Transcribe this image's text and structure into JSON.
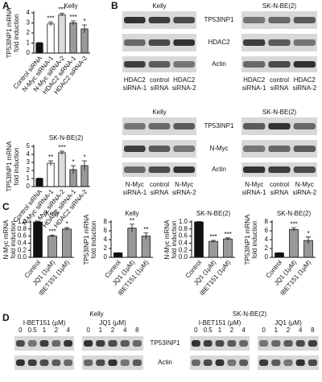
{
  "panel_letters": [
    "A",
    "B",
    "C",
    "D"
  ],
  "chart_data": [
    {
      "type": "bar",
      "title": "Kelly",
      "ylabel": [
        "TP53INP1 mRNA",
        "fold induction"
      ],
      "categories": [
        "Control siRNA",
        "N-Myc siRNA-1",
        "N-Myc siRNA-2",
        "HDAC2 siRNA-1",
        "HDAC2 siRNA-2"
      ],
      "values": [
        1,
        2.9,
        3.8,
        3.0,
        2.4
      ],
      "errors": [
        0.05,
        0.2,
        0.15,
        0.2,
        0.4
      ],
      "colors": [
        "#111111",
        "#ffffff",
        "#dddddd",
        "#999999",
        "#999999"
      ],
      "annotations": [
        null,
        "***",
        "***",
        "***",
        "*"
      ],
      "ylim": [
        0,
        4
      ],
      "yticks": [
        0,
        1,
        2,
        3,
        4
      ]
    },
    {
      "type": "bar",
      "title": "SK-N-BE(2)",
      "ylabel": [
        "TP53INP1 mRNA",
        "fold induction"
      ],
      "categories": [
        "Control siRNA",
        "N-Myc siRNA-1",
        "N-Myc siRNA-2",
        "HDAC2 siRNA-1",
        "HDAC2 siRNA-2"
      ],
      "values": [
        1,
        2.9,
        4.2,
        2.1,
        2.6
      ],
      "errors": [
        0.05,
        0.3,
        0.2,
        0.5,
        0.6
      ],
      "colors": [
        "#111111",
        "#ffffff",
        "#dddddd",
        "#999999",
        "#999999"
      ],
      "annotations": [
        null,
        "**",
        "***",
        "*",
        "*"
      ],
      "ylim": [
        0,
        5
      ],
      "yticks": [
        0,
        1,
        2,
        3,
        4,
        5
      ]
    },
    {
      "type": "bar",
      "title": "Kelly",
      "ylabel": [
        "N-Myc mRNA",
        "fold induction"
      ],
      "categories": [
        "Control",
        "JQ1 (1μM)",
        "IBET151 (1μM)"
      ],
      "values": [
        1,
        0.6,
        0.8
      ],
      "errors": [
        0.01,
        0.03,
        0.04
      ],
      "colors": [
        "#111111",
        "#999999",
        "#999999"
      ],
      "annotations": [
        null,
        "***",
        "*"
      ],
      "ylim": [
        0,
        1.0
      ],
      "yticks": [
        {
          "value": 0,
          "label": "0.0"
        },
        0.2,
        0.4,
        0.6,
        0.8,
        {
          "value": 1,
          "label": "1.0"
        }
      ]
    },
    {
      "type": "bar",
      "title": "Kelly",
      "ylabel": [
        "TP53INP1 mRNA",
        "fold induction"
      ],
      "categories": [
        "Control",
        "JQ1 (1μM)",
        "IBET151 (1μM)"
      ],
      "values": [
        1,
        6.6,
        4.8
      ],
      "errors": [
        0.05,
        0.9,
        0.7
      ],
      "colors": [
        "#111111",
        "#999999",
        "#999999"
      ],
      "annotations": [
        null,
        "**",
        "**"
      ],
      "ylim": [
        0,
        8
      ],
      "yticks": [
        0,
        2,
        4,
        6,
        8
      ]
    },
    {
      "type": "bar",
      "title": "SK-N-BE(2)",
      "ylabel": [
        "N-Myc mRNA",
        "fold induction"
      ],
      "categories": [
        "Control",
        "JQ1 (1μM)",
        "IBET151 (1μM)"
      ],
      "values": [
        1,
        0.45,
        0.52
      ],
      "errors": [
        0.01,
        0.03,
        0.03
      ],
      "colors": [
        "#111111",
        "#999999",
        "#999999"
      ],
      "annotations": [
        null,
        "***",
        "***"
      ],
      "ylim": [
        0,
        1.0
      ],
      "yticks": [
        {
          "value": 0,
          "label": "0.0"
        },
        0.2,
        0.4,
        0.6,
        0.8,
        {
          "value": 1,
          "label": "1.0"
        }
      ]
    },
    {
      "type": "bar",
      "title": "SK-N-BE(2)",
      "ylabel": [
        "TP53INP1 mRNA",
        "fold induction"
      ],
      "categories": [
        "Control",
        "JQ1 (1μM)",
        "IBET151 (1μM)"
      ],
      "values": [
        1,
        6.3,
        3.8
      ],
      "errors": [
        0.05,
        0.4,
        0.8
      ],
      "colors": [
        "#111111",
        "#999999",
        "#999999"
      ],
      "annotations": [
        null,
        "***",
        "*"
      ],
      "ylim": [
        0,
        8
      ],
      "yticks": [
        0,
        2,
        4,
        6,
        8
      ]
    }
  ],
  "blots_b": [
    {
      "cell_lines": [
        "Kelly",
        "SK-N-BE(2)"
      ],
      "rows": [
        "TP53INP1",
        "HDAC2",
        "Actin"
      ],
      "lanes": [
        [
          "HDAC2",
          "siRNA-1"
        ],
        [
          "control",
          "siRNA"
        ],
        [
          "HDAC2",
          "siRNA-2"
        ]
      ]
    },
    {
      "cell_lines": [
        "Kelly",
        "SK-N-BE(2)"
      ],
      "rows": [
        "TP53INP1",
        "N-Myc",
        "Actin"
      ],
      "lanes": [
        [
          "N-Myc",
          "siRNA-1"
        ],
        [
          "control",
          "siRNA"
        ],
        [
          "N-Myc",
          "siRNA-2"
        ]
      ]
    }
  ],
  "blots_d": {
    "cell_lines": [
      "Kelly",
      "SK-N-BE(2)"
    ],
    "treatments": [
      {
        "name": "I-BET151 (μM)",
        "doses": [
          "0",
          "0.5",
          "1",
          "2",
          "4"
        ]
      },
      {
        "name": "JQ1 (μM)",
        "doses": [
          "0",
          "1",
          "2",
          "4",
          "8"
        ]
      }
    ],
    "rows": [
      "TP53INP1",
      "Actin"
    ]
  }
}
